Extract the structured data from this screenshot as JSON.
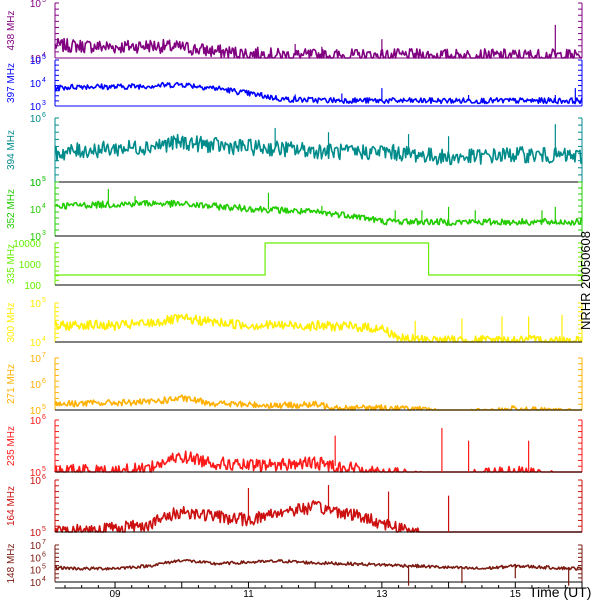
{
  "chart_data": {
    "type": "line",
    "side_label": "NRHR 20050608",
    "x_axis": {
      "label": "Time (UT)",
      "range_ut_hours": [
        8.1,
        16.0
      ],
      "tick_labels": [
        "09",
        "11",
        "13",
        "15"
      ],
      "tick_hours": [
        9,
        11,
        13,
        15
      ]
    },
    "panels": [
      {
        "freq_label": "438 MHz",
        "color": "#800080",
        "y_scale": "log",
        "y_tick_labels": [
          "10",
          "10"
        ],
        "y_tick_exponents": [
          "5",
          "4"
        ],
        "series": [
          [
            8.1,
            17000
          ],
          [
            8.5,
            16500
          ],
          [
            9.0,
            15800
          ],
          [
            9.5,
            16800
          ],
          [
            10.0,
            15500
          ],
          [
            10.5,
            13200
          ],
          [
            11.0,
            12000
          ],
          [
            11.5,
            11200
          ],
          [
            12.0,
            11000
          ],
          [
            12.5,
            11000
          ],
          [
            13.0,
            11000
          ],
          [
            14.0,
            11000
          ],
          [
            15.0,
            11000
          ],
          [
            16.0,
            11000
          ]
        ],
        "spikes": [
          [
            11.7,
            18000
          ],
          [
            12.1,
            16000
          ],
          [
            13.0,
            22000
          ],
          [
            15.6,
            40000
          ]
        ]
      },
      {
        "freq_label": "397 MHz",
        "color": "#0000ff",
        "y_scale": "log",
        "y_tick_labels": [
          "10",
          "10",
          "10"
        ],
        "y_tick_exponents": [
          "5",
          "4",
          "3"
        ],
        "series": [
          [
            8.1,
            6000
          ],
          [
            8.5,
            7200
          ],
          [
            9.0,
            6800
          ],
          [
            9.5,
            7500
          ],
          [
            10.0,
            8800
          ],
          [
            10.3,
            7000
          ],
          [
            10.6,
            5500
          ],
          [
            11.0,
            3500
          ],
          [
            11.5,
            2000
          ],
          [
            12.0,
            1800
          ],
          [
            13.0,
            1700
          ],
          [
            14.0,
            1700
          ],
          [
            15.0,
            1700
          ],
          [
            16.0,
            1700
          ]
        ],
        "spikes": [
          [
            10.8,
            4500
          ],
          [
            11.2,
            4000
          ],
          [
            11.7,
            3200
          ],
          [
            12.4,
            3500
          ],
          [
            13.0,
            6000
          ],
          [
            14.3,
            3000
          ],
          [
            15.6,
            3000
          ],
          [
            15.9,
            6000
          ]
        ]
      },
      {
        "freq_label": "394 MHz",
        "color": "#008b8b",
        "y_scale": "log",
        "y_tick_labels": [
          "10",
          "10"
        ],
        "y_tick_exponents": [
          "6",
          "5"
        ],
        "series": [
          [
            8.1,
            280000
          ],
          [
            8.5,
            310000
          ],
          [
            9.0,
            330000
          ],
          [
            9.5,
            360000
          ],
          [
            10.0,
            420000
          ],
          [
            10.5,
            370000
          ],
          [
            11.0,
            350000
          ],
          [
            11.5,
            330000
          ],
          [
            12.0,
            310000
          ],
          [
            12.5,
            290000
          ],
          [
            13.0,
            300000
          ],
          [
            13.5,
            270000
          ],
          [
            14.0,
            240000
          ],
          [
            14.5,
            250000
          ],
          [
            15.0,
            270000
          ],
          [
            15.5,
            260000
          ],
          [
            16.0,
            250000
          ]
        ],
        "spikes": [
          [
            11.4,
            700000
          ],
          [
            12.2,
            600000
          ],
          [
            13.4,
            560000
          ],
          [
            14.0,
            520000
          ],
          [
            15.6,
            800000
          ]
        ]
      },
      {
        "freq_label": "352 MHz",
        "color": "#22cc00",
        "y_scale": "log",
        "y_tick_labels": [
          "10",
          "10",
          "10"
        ],
        "y_tick_exponents": [
          "5",
          "4",
          "3"
        ],
        "series": [
          [
            8.1,
            13000
          ],
          [
            8.5,
            14000
          ],
          [
            9.0,
            15000
          ],
          [
            9.5,
            16500
          ],
          [
            10.0,
            15000
          ],
          [
            10.5,
            12500
          ],
          [
            11.0,
            10500
          ],
          [
            11.5,
            9000
          ],
          [
            12.0,
            7500
          ],
          [
            12.5,
            6000
          ],
          [
            12.8,
            4500
          ],
          [
            13.0,
            3500
          ],
          [
            14.0,
            3300
          ],
          [
            15.0,
            3300
          ],
          [
            16.0,
            3300
          ]
        ],
        "spikes": [
          [
            8.9,
            55000
          ],
          [
            9.3,
            30000
          ],
          [
            11.3,
            40000
          ],
          [
            12.1,
            13000
          ],
          [
            13.2,
            9000
          ],
          [
            13.6,
            9000
          ],
          [
            14.0,
            12000
          ],
          [
            14.4,
            9000
          ],
          [
            15.4,
            9000
          ],
          [
            15.6,
            12000
          ]
        ]
      },
      {
        "freq_label": "335 MHz",
        "color": "#66ee00",
        "y_scale": "log",
        "y_tick_labels": [
          "10000",
          "1000",
          "100"
        ],
        "series": [
          [
            8.1,
            300
          ],
          [
            11.25,
            300
          ],
          [
            11.25,
            10000
          ],
          [
            13.7,
            10000
          ],
          [
            13.7,
            300
          ],
          [
            16.0,
            300
          ]
        ]
      },
      {
        "freq_label": "300 MHz",
        "color": "#ffee00",
        "y_scale": "log",
        "y_tick_labels": [
          "10",
          "10"
        ],
        "y_tick_exponents": [
          "5",
          "4"
        ],
        "series": [
          [
            8.1,
            25000
          ],
          [
            8.5,
            28000
          ],
          [
            9.0,
            26000
          ],
          [
            9.5,
            30000
          ],
          [
            10.0,
            40000
          ],
          [
            10.5,
            32000
          ],
          [
            11.0,
            27000
          ],
          [
            11.5,
            27000
          ],
          [
            12.0,
            26000
          ],
          [
            12.5,
            25000
          ],
          [
            13.0,
            22000
          ],
          [
            13.3,
            12000
          ],
          [
            14.0,
            11000
          ],
          [
            15.0,
            11000
          ],
          [
            16.0,
            11000
          ]
        ],
        "spikes": [
          [
            13.5,
            35000
          ],
          [
            14.2,
            40000
          ],
          [
            14.8,
            45000
          ],
          [
            15.2,
            45000
          ],
          [
            15.7,
            50000
          ]
        ]
      },
      {
        "freq_label": "271 MHz",
        "color": "#ffb000",
        "y_scale": "log",
        "y_tick_labels": [
          "10",
          "10",
          "10"
        ],
        "y_tick_exponents": [
          "7",
          "6",
          "5"
        ],
        "series": [
          [
            8.1,
            170000
          ],
          [
            8.5,
            180000
          ],
          [
            9.0,
            190000
          ],
          [
            9.5,
            200000
          ],
          [
            10.0,
            280000
          ],
          [
            10.5,
            180000
          ],
          [
            11.0,
            160000
          ],
          [
            11.5,
            150000
          ],
          [
            12.0,
            160000
          ],
          [
            12.5,
            120000
          ],
          [
            13.0,
            120000
          ],
          [
            13.5,
            110000
          ],
          [
            14.0,
            70000
          ],
          [
            14.5,
            90000
          ],
          [
            15.0,
            110000
          ],
          [
            15.5,
            90000
          ],
          [
            16.0,
            80000
          ]
        ]
      },
      {
        "freq_label": "235 MHz",
        "color": "#ff1a1a",
        "y_scale": "log",
        "y_tick_labels": [
          "10",
          "10"
        ],
        "y_tick_exponents": [
          "6",
          "5"
        ],
        "series": [
          [
            8.1,
            100000
          ],
          [
            8.5,
            110000
          ],
          [
            9.0,
            100000
          ],
          [
            9.5,
            120000
          ],
          [
            10.0,
            200000
          ],
          [
            10.5,
            150000
          ],
          [
            11.0,
            130000
          ],
          [
            11.5,
            140000
          ],
          [
            12.0,
            150000
          ],
          [
            12.5,
            120000
          ],
          [
            13.0,
            100000
          ],
          [
            13.5,
            80000
          ],
          [
            14.0,
            70000
          ],
          [
            14.5,
            90000
          ],
          [
            15.0,
            100000
          ],
          [
            15.5,
            80000
          ],
          [
            16.0,
            70000
          ]
        ],
        "spikes": [
          [
            12.3,
            500000
          ],
          [
            13.9,
            700000
          ],
          [
            14.3,
            400000
          ],
          [
            15.2,
            400000
          ]
        ]
      },
      {
        "freq_label": "164 MHz",
        "color": "#cc1010",
        "y_scale": "log",
        "y_tick_labels": [
          "10",
          "10"
        ],
        "y_tick_exponents": [
          "6",
          "5"
        ],
        "series": [
          [
            8.1,
            100000
          ],
          [
            8.5,
            110000
          ],
          [
            9.0,
            120000
          ],
          [
            9.5,
            140000
          ],
          [
            10.0,
            250000
          ],
          [
            10.5,
            200000
          ],
          [
            11.0,
            170000
          ],
          [
            11.5,
            250000
          ],
          [
            12.0,
            300000
          ],
          [
            12.5,
            230000
          ],
          [
            13.0,
            150000
          ],
          [
            13.5,
            100000
          ],
          [
            14.0,
            60000
          ],
          [
            14.5,
            50000
          ],
          [
            15.0,
            70000
          ],
          [
            15.5,
            60000
          ],
          [
            16.0,
            70000
          ]
        ],
        "spikes": [
          [
            11.0,
            700000
          ],
          [
            12.2,
            800000
          ],
          [
            13.1,
            600000
          ],
          [
            14.0,
            500000
          ]
        ]
      },
      {
        "freq_label": "148 MHz",
        "color": "#7a1a10",
        "y_scale": "log",
        "y_tick_labels": [
          "10",
          "10",
          "10",
          "10"
        ],
        "y_tick_exponents": [
          "7",
          "6",
          "5",
          "4"
        ],
        "series": [
          [
            8.1,
            150000
          ],
          [
            8.5,
            120000
          ],
          [
            9.0,
            130000
          ],
          [
            9.5,
            200000
          ],
          [
            10.0,
            600000
          ],
          [
            10.5,
            300000
          ],
          [
            11.0,
            400000
          ],
          [
            11.5,
            500000
          ],
          [
            12.0,
            350000
          ],
          [
            12.5,
            300000
          ],
          [
            13.0,
            250000
          ],
          [
            13.5,
            200000
          ],
          [
            14.0,
            150000
          ],
          [
            14.5,
            120000
          ],
          [
            15.0,
            200000
          ],
          [
            15.5,
            150000
          ],
          [
            16.0,
            120000
          ]
        ],
        "spikes": [
          [
            13.4,
            5000
          ],
          [
            14.2,
            8000
          ],
          [
            15.0,
            20000
          ],
          [
            15.8,
            5000
          ]
        ]
      }
    ]
  }
}
